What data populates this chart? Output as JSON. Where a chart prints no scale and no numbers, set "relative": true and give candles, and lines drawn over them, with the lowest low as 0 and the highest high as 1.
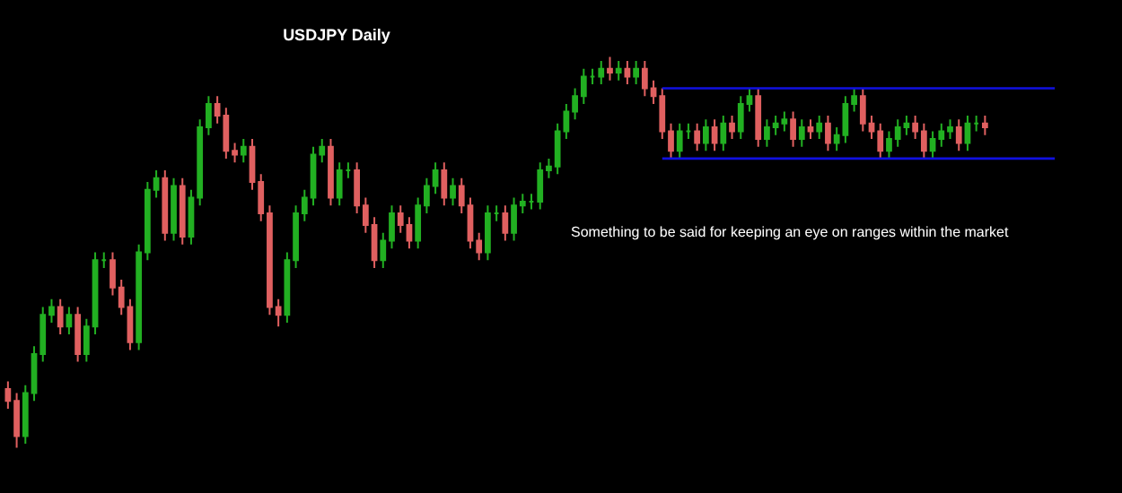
{
  "chart_data": {
    "type": "candlestick",
    "title": "USDJPY Daily",
    "relative": true,
    "colors": [
      "#e06060",
      "#e06060",
      "#22b022",
      "#22b022",
      "#22b022",
      "#22b022",
      "#e06060",
      "#22b022",
      "#e06060",
      "#22b022",
      "#22b022",
      "#22b022",
      "#e06060",
      "#e06060",
      "#e06060",
      "#22b022",
      "#22b022",
      "#22b022",
      "#e06060",
      "#22b022",
      "#e06060",
      "#22b022",
      "#22b022",
      "#22b022",
      "#e06060",
      "#e06060",
      "#e06060",
      "#22b022",
      "#e06060",
      "#e06060",
      "#e06060",
      "#e06060",
      "#22b022",
      "#22b022",
      "#22b022",
      "#22b022",
      "#22b022",
      "#e06060",
      "#22b022",
      "#22b022",
      "#e06060",
      "#e06060",
      "#e06060",
      "#22b022",
      "#22b022",
      "#e06060",
      "#e06060",
      "#22b022",
      "#22b022",
      "#22b022",
      "#e06060",
      "#22b022",
      "#e06060",
      "#e06060",
      "#e06060",
      "#22b022",
      "#22b022",
      "#e06060",
      "#22b022",
      "#22b022",
      "#22b022",
      "#22b022",
      "#22b022",
      "#22b022",
      "#22b022",
      "#22b022",
      "#22b022",
      "#22b022",
      "#22b022",
      "#e06060",
      "#22b022",
      "#e06060",
      "#22b022",
      "#e06060",
      "#e06060",
      "#e06060",
      "#e06060",
      "#22b022",
      "#22b022",
      "#e06060",
      "#22b022",
      "#e06060",
      "#22b022",
      "#e06060",
      "#22b022",
      "#22b022",
      "#e06060",
      "#22b022",
      "#22b022",
      "#22b022",
      "#e06060",
      "#22b022",
      "#e06060",
      "#22b022",
      "#e06060",
      "#22b022",
      "#22b022",
      "#22b022",
      "#e06060",
      "#e06060",
      "#e06060",
      "#22b022",
      "#22b022",
      "#22b022",
      "#e06060",
      "#e06060",
      "#22b022",
      "#22b022",
      "#22b022",
      "#e06060",
      "#22b022",
      "#22b022",
      "#e06060",
      null,
      null,
      null,
      null,
      null,
      null,
      null,
      null
    ],
    "categories": [
      null,
      null,
      null,
      null,
      null,
      null,
      null,
      null,
      null,
      null,
      null,
      null,
      null,
      null,
      null,
      null,
      null,
      null,
      null,
      null,
      null,
      null,
      null,
      null,
      null,
      null,
      null,
      null,
      null,
      null,
      null,
      null,
      null,
      null,
      null,
      null,
      null,
      null,
      null,
      null,
      null,
      null,
      null,
      null,
      null,
      null,
      null,
      null,
      null,
      null,
      null,
      null,
      null,
      null,
      null,
      null,
      null,
      null,
      null,
      null,
      null,
      null,
      null,
      null,
      null,
      null,
      null,
      null,
      null,
      null,
      null,
      null,
      null,
      null,
      null,
      null,
      null,
      null,
      null,
      null,
      null,
      null,
      null,
      null,
      null,
      null,
      null,
      null,
      null,
      null,
      null,
      null,
      null,
      null,
      null,
      null,
      null,
      null,
      null,
      null,
      null,
      null,
      null,
      null,
      null,
      null,
      null,
      null,
      null,
      null,
      null,
      null,
      null,
      null,
      null,
      null,
      null,
      null,
      null,
      null,
      null
    ],
    "ohlc": [
      [
        0.15,
        0.17,
        0.1,
        0.12
      ],
      [
        0.12,
        0.14,
        0,
        0.03
      ],
      [
        0.03,
        0.16,
        0.01,
        0.14
      ],
      [
        0.14,
        0.26,
        0.12,
        0.24
      ],
      [
        0.24,
        0.36,
        0.22,
        0.34
      ],
      [
        0.34,
        0.38,
        0.32,
        0.36
      ],
      [
        0.36,
        0.38,
        0.29,
        0.31
      ],
      [
        0.31,
        0.36,
        0.29,
        0.34
      ],
      [
        0.34,
        0.36,
        0.22,
        0.24
      ],
      [
        0.24,
        0.33,
        0.22,
        0.31
      ],
      [
        0.31,
        0.5,
        0.29,
        0.48
      ],
      [
        0.48,
        0.5,
        0.46,
        0.48
      ],
      [
        0.48,
        0.5,
        0.39,
        0.41
      ],
      [
        0.41,
        0.43,
        0.34,
        0.36
      ],
      [
        0.36,
        0.38,
        0.25,
        0.27
      ],
      [
        0.27,
        0.52,
        0.25,
        0.5
      ],
      [
        0.5,
        0.68,
        0.48,
        0.66
      ],
      [
        0.66,
        0.71,
        0.64,
        0.69
      ],
      [
        0.69,
        0.71,
        0.53,
        0.55
      ],
      [
        0.55,
        0.69,
        0.53,
        0.67
      ],
      [
        0.67,
        0.69,
        0.52,
        0.54
      ],
      [
        0.54,
        0.66,
        0.52,
        0.64
      ],
      [
        0.64,
        0.84,
        0.62,
        0.82
      ],
      [
        0.82,
        0.9,
        0.8,
        0.88
      ],
      [
        0.88,
        0.9,
        0.83,
        0.85
      ],
      [
        0.85,
        0.87,
        0.74,
        0.76
      ],
      [
        0.76,
        0.78,
        0.73,
        0.75
      ],
      [
        0.75,
        0.79,
        0.73,
        0.77
      ],
      [
        0.77,
        0.79,
        0.66,
        0.68
      ],
      [
        0.68,
        0.7,
        0.58,
        0.6
      ],
      [
        0.6,
        0.62,
        0.34,
        0.36
      ],
      [
        0.36,
        0.38,
        0.31,
        0.34
      ],
      [
        0.34,
        0.5,
        0.32,
        0.48
      ],
      [
        0.48,
        0.62,
        0.46,
        0.6
      ],
      [
        0.6,
        0.66,
        0.58,
        0.64
      ],
      [
        0.64,
        0.77,
        0.62,
        0.75
      ],
      [
        0.75,
        0.79,
        0.73,
        0.77
      ],
      [
        0.77,
        0.79,
        0.62,
        0.64
      ],
      [
        0.64,
        0.73,
        0.62,
        0.71
      ],
      [
        0.71,
        0.73,
        0.69,
        0.71
      ],
      [
        0.71,
        0.73,
        0.6,
        0.62
      ],
      [
        0.62,
        0.64,
        0.55,
        0.57
      ],
      [
        0.57,
        0.59,
        0.46,
        0.48
      ],
      [
        0.48,
        0.55,
        0.46,
        0.53
      ],
      [
        0.53,
        0.62,
        0.51,
        0.6
      ],
      [
        0.6,
        0.62,
        0.55,
        0.57
      ],
      [
        0.57,
        0.59,
        0.51,
        0.53
      ],
      [
        0.53,
        0.64,
        0.51,
        0.62
      ],
      [
        0.62,
        0.69,
        0.6,
        0.67
      ],
      [
        0.67,
        0.73,
        0.65,
        0.71
      ],
      [
        0.71,
        0.73,
        0.62,
        0.64
      ],
      [
        0.64,
        0.69,
        0.62,
        0.67
      ],
      [
        0.67,
        0.69,
        0.6,
        0.62
      ],
      [
        0.62,
        0.64,
        0.51,
        0.53
      ],
      [
        0.53,
        0.55,
        0.48,
        0.5
      ],
      [
        0.5,
        0.62,
        0.48,
        0.6
      ],
      [
        0.6,
        0.62,
        0.58,
        0.6
      ],
      [
        0.6,
        0.62,
        0.53,
        0.55
      ],
      [
        0.55,
        0.64,
        0.53,
        0.62
      ],
      [
        0.62,
        0.65,
        0.6,
        0.63
      ],
      [
        0.63,
        0.65,
        0.61,
        0.63
      ],
      [
        0.63,
        0.73,
        0.61,
        0.71
      ],
      [
        0.71,
        0.74,
        0.69,
        0.72
      ],
      [
        0.72,
        0.83,
        0.7,
        0.81
      ],
      [
        0.81,
        0.88,
        0.79,
        0.86
      ],
      [
        0.86,
        0.92,
        0.84,
        0.9
      ],
      [
        0.9,
        0.97,
        0.88,
        0.95
      ],
      [
        0.95,
        0.97,
        0.93,
        0.95
      ],
      [
        0.95,
        0.99,
        0.93,
        0.97
      ],
      [
        0.97,
        1,
        0.94,
        0.96
      ],
      [
        0.96,
        0.99,
        0.94,
        0.97
      ],
      [
        0.97,
        0.99,
        0.93,
        0.95
      ],
      [
        0.95,
        0.99,
        0.93,
        0.97
      ],
      [
        0.97,
        0.99,
        0.9,
        0.92
      ],
      [
        0.92,
        0.94,
        0.88,
        0.9
      ],
      [
        0.9,
        0.92,
        0.79,
        0.81
      ],
      [
        0.81,
        0.83,
        0.74,
        0.76
      ],
      [
        0.76,
        0.83,
        0.74,
        0.81
      ],
      [
        0.81,
        0.83,
        0.79,
        0.81
      ],
      [
        0.81,
        0.83,
        0.76,
        0.78
      ],
      [
        0.78,
        0.84,
        0.76,
        0.82
      ],
      [
        0.82,
        0.84,
        0.76,
        0.78
      ],
      [
        0.78,
        0.85,
        0.76,
        0.83
      ],
      [
        0.83,
        0.85,
        0.79,
        0.81
      ],
      [
        0.81,
        0.9,
        0.79,
        0.88
      ],
      [
        0.88,
        0.92,
        0.86,
        0.9
      ],
      [
        0.9,
        0.92,
        0.77,
        0.79
      ],
      [
        0.79,
        0.84,
        0.77,
        0.82
      ],
      [
        0.82,
        0.85,
        0.8,
        0.83
      ],
      [
        0.83,
        0.86,
        0.81,
        0.84
      ],
      [
        0.84,
        0.86,
        0.77,
        0.79
      ],
      [
        0.79,
        0.84,
        0.77,
        0.82
      ],
      [
        0.82,
        0.84,
        0.79,
        0.81
      ],
      [
        0.81,
        0.85,
        0.79,
        0.83
      ],
      [
        0.83,
        0.85,
        0.76,
        0.78
      ],
      [
        0.78,
        0.82,
        0.76,
        0.8
      ],
      [
        0.8,
        0.9,
        0.78,
        0.88
      ],
      [
        0.88,
        0.92,
        0.86,
        0.9
      ],
      [
        0.9,
        0.92,
        0.81,
        0.83
      ],
      [
        0.83,
        0.85,
        0.79,
        0.81
      ],
      [
        0.81,
        0.83,
        0.74,
        0.76
      ],
      [
        0.76,
        0.81,
        0.74,
        0.79
      ],
      [
        0.79,
        0.84,
        0.77,
        0.82
      ],
      [
        0.82,
        0.85,
        0.8,
        0.83
      ],
      [
        0.83,
        0.85,
        0.79,
        0.81
      ],
      [
        0.81,
        0.83,
        0.74,
        0.76
      ],
      [
        0.76,
        0.81,
        0.74,
        0.79
      ],
      [
        0.79,
        0.83,
        0.77,
        0.81
      ],
      [
        0.81,
        0.84,
        0.79,
        0.82
      ],
      [
        0.82,
        0.84,
        0.76,
        0.78
      ],
      [
        0.78,
        0.85,
        0.76,
        0.83
      ],
      [
        0.83,
        0.85,
        0.81,
        0.83
      ],
      [
        0.83,
        0.85,
        0.8,
        0.82
      ],
      null,
      null,
      null,
      null,
      null,
      null,
      null,
      null
    ],
    "series": [
      {
        "type": "line",
        "color": "#1010e0",
        "values": [
          null,
          null,
          null,
          null,
          null,
          null,
          null,
          null,
          null,
          null,
          null,
          null,
          null,
          null,
          null,
          null,
          null,
          null,
          null,
          null,
          null,
          null,
          null,
          null,
          null,
          null,
          null,
          null,
          null,
          null,
          null,
          null,
          null,
          null,
          null,
          null,
          null,
          null,
          null,
          null,
          null,
          null,
          null,
          null,
          null,
          null,
          null,
          null,
          null,
          null,
          null,
          null,
          null,
          null,
          null,
          null,
          null,
          null,
          null,
          null,
          null,
          null,
          null,
          null,
          null,
          null,
          null,
          null,
          null,
          null,
          null,
          null,
          null,
          null,
          null,
          0.92,
          0.92,
          0.92,
          0.92,
          0.92,
          0.92,
          0.92,
          0.92,
          0.92,
          0.92,
          0.92,
          0.92,
          0.92,
          0.92,
          0.92,
          0.92,
          0.92,
          0.92,
          0.92,
          0.92,
          0.92,
          0.92,
          0.92,
          0.92,
          0.92,
          0.92,
          0.92,
          0.92,
          0.92,
          0.92,
          0.92,
          0.92,
          0.92,
          0.92,
          0.92,
          0.92,
          0.92,
          0.92,
          0.92,
          0.92,
          0.92,
          0.92,
          0.92,
          0.92,
          0.92,
          0.92
        ]
      },
      {
        "type": "line",
        "color": "#1010e0",
        "values": [
          null,
          null,
          null,
          null,
          null,
          null,
          null,
          null,
          null,
          null,
          null,
          null,
          null,
          null,
          null,
          null,
          null,
          null,
          null,
          null,
          null,
          null,
          null,
          null,
          null,
          null,
          null,
          null,
          null,
          null,
          null,
          null,
          null,
          null,
          null,
          null,
          null,
          null,
          null,
          null,
          null,
          null,
          null,
          null,
          null,
          null,
          null,
          null,
          null,
          null,
          null,
          null,
          null,
          null,
          null,
          null,
          null,
          null,
          null,
          null,
          null,
          null,
          null,
          null,
          null,
          null,
          null,
          null,
          null,
          null,
          null,
          null,
          null,
          null,
          null,
          0.74,
          0.74,
          0.74,
          0.74,
          0.74,
          0.74,
          0.74,
          0.74,
          0.74,
          0.74,
          0.74,
          0.74,
          0.74,
          0.74,
          0.74,
          0.74,
          0.74,
          0.74,
          0.74,
          0.74,
          0.74,
          0.74,
          0.74,
          0.74,
          0.74,
          0.74,
          0.74,
          0.74,
          0.74,
          0.74,
          0.74,
          0.74,
          0.74,
          0.74,
          0.74,
          0.74,
          0.74,
          0.74,
          0.74,
          0.74,
          0.74,
          0.74,
          0.74,
          0.74,
          0.74,
          0.74
        ]
      }
    ],
    "annotations": [
      "Something to be said for keeping an eye on ranges within the market"
    ]
  }
}
